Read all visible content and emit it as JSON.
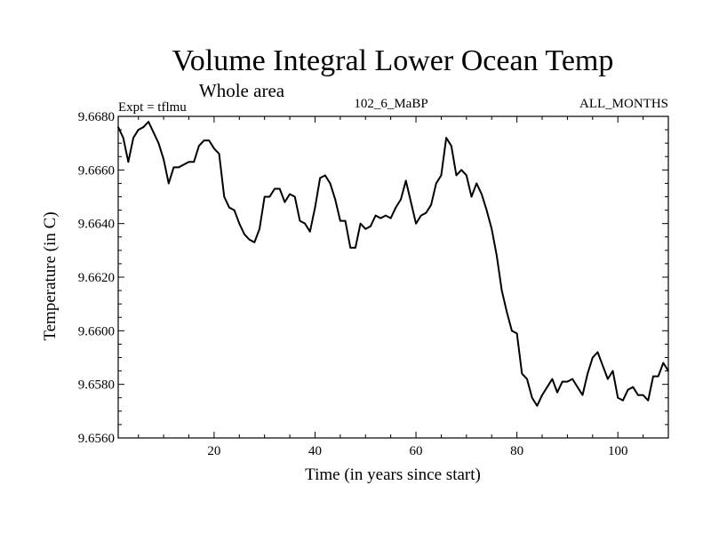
{
  "chart_data": {
    "type": "line",
    "title": "Volume Integral Lower Ocean Temp",
    "subtitle": "Whole area",
    "left_label": "Expt = tflmu",
    "center_label": "102_6_MaBP",
    "right_label": "ALL_MONTHS",
    "xlabel": "Time (in years since start)",
    "ylabel": "Temperature (in C)",
    "xlim": [
      1,
      110
    ],
    "ylim": [
      9.656,
      9.668
    ],
    "xticks": [
      20,
      40,
      60,
      80,
      100
    ],
    "xtick_labels": [
      "20",
      "40",
      "60",
      "80",
      "100"
    ],
    "yticks": [
      9.656,
      9.658,
      9.66,
      9.662,
      9.664,
      9.666,
      9.668
    ],
    "ytick_labels": [
      "9.6560",
      "9.6580",
      "9.6600",
      "9.6620",
      "9.6640",
      "9.6660",
      "9.6680"
    ],
    "grid": false,
    "series": [
      {
        "name": "Temperature",
        "color": "#000000",
        "x": [
          1,
          2,
          3,
          4,
          5,
          6,
          7,
          8,
          9,
          10,
          11,
          12,
          13,
          14,
          15,
          16,
          17,
          18,
          19,
          20,
          21,
          22,
          23,
          24,
          25,
          26,
          27,
          28,
          29,
          30,
          31,
          32,
          33,
          34,
          35,
          36,
          37,
          38,
          39,
          40,
          41,
          42,
          43,
          44,
          45,
          46,
          47,
          48,
          49,
          50,
          51,
          52,
          53,
          54,
          55,
          56,
          57,
          58,
          59,
          60,
          61,
          62,
          63,
          64,
          65,
          66,
          67,
          68,
          69,
          70,
          71,
          72,
          73,
          74,
          75,
          76,
          77,
          78,
          79,
          80,
          81,
          82,
          83,
          84,
          85,
          86,
          87,
          88,
          89,
          90,
          91,
          92,
          93,
          94,
          95,
          96,
          97,
          98,
          99,
          100,
          101,
          102,
          103,
          104,
          105,
          106,
          107,
          108,
          109,
          110
        ],
        "y": [
          9.6676,
          9.6672,
          9.6663,
          9.6672,
          9.6675,
          9.6676,
          9.6678,
          9.6674,
          9.667,
          9.6664,
          9.6655,
          9.6661,
          9.6661,
          9.6662,
          9.6663,
          9.6663,
          9.6669,
          9.6671,
          9.6671,
          9.6668,
          9.6666,
          9.665,
          9.6646,
          9.6645,
          9.664,
          9.6636,
          9.6634,
          9.6633,
          9.6638,
          9.665,
          9.665,
          9.6653,
          9.6653,
          9.6648,
          9.6651,
          9.665,
          9.6641,
          9.664,
          9.6637,
          9.6646,
          9.6657,
          9.6658,
          9.6655,
          9.6649,
          9.6641,
          9.6641,
          9.6631,
          9.6631,
          9.664,
          9.6638,
          9.6639,
          9.6643,
          9.6642,
          9.6643,
          9.6642,
          9.6646,
          9.6649,
          9.6656,
          9.6648,
          9.664,
          9.6643,
          9.6644,
          9.6647,
          9.6655,
          9.6658,
          9.6672,
          9.6669,
          9.6658,
          9.666,
          9.6658,
          9.665,
          9.6655,
          9.6651,
          9.6645,
          9.6638,
          9.6628,
          9.6615,
          9.6607,
          9.66,
          9.6599,
          9.6584,
          9.6582,
          9.6575,
          9.6572,
          9.6576,
          9.6579,
          9.6582,
          9.6577,
          9.6581,
          9.6581,
          9.6582,
          9.6579,
          9.6576,
          9.6584,
          9.659,
          9.6592,
          9.6587,
          9.6582,
          9.6585,
          9.6575,
          9.6574,
          9.6578,
          9.6579,
          9.6576,
          9.6576,
          9.6574,
          9.6583,
          9.6583,
          9.6588,
          9.6585
        ]
      }
    ]
  }
}
